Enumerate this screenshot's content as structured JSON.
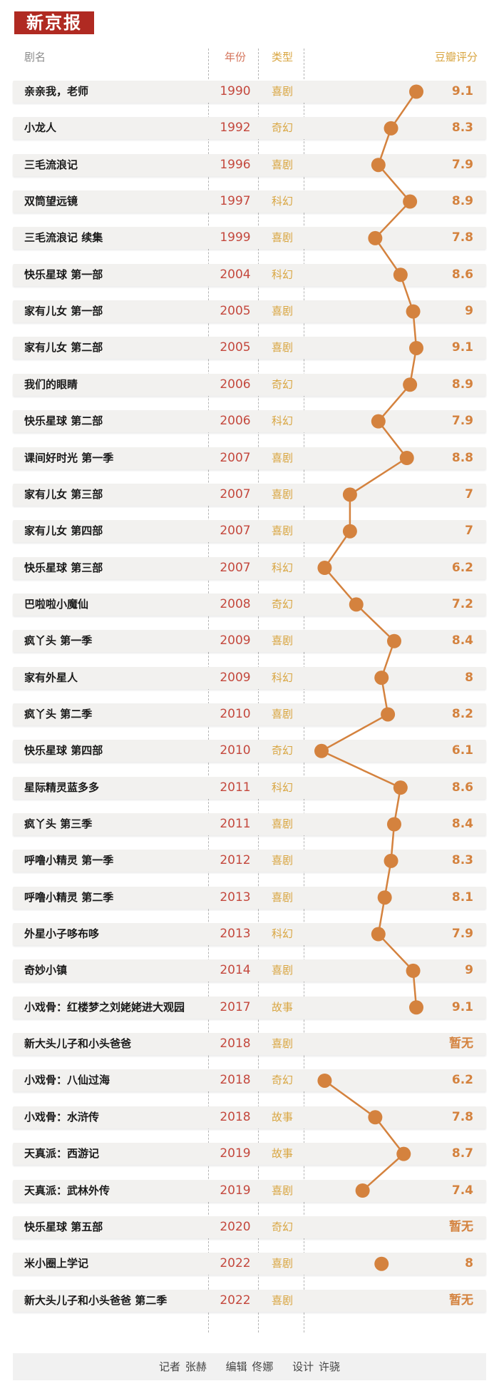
{
  "logo": "新京报",
  "headers": {
    "name": "剧名",
    "year": "年份",
    "type": "类型",
    "score": "豆瓣评分"
  },
  "colors": {
    "marker": "#d4823e",
    "year_text": "#c4483d",
    "type_text": "#d9a642",
    "logo_bg": "#b02a22"
  },
  "chart_data": {
    "type": "line",
    "orientation": "vertical",
    "xlabel": "豆瓣评分",
    "categories": [
      "亲亲我，老师",
      "小龙人",
      "三毛流浪记",
      "双筒望远镜",
      "三毛流浪记 续集",
      "快乐星球 第一部",
      "家有儿女 第一部",
      "家有儿女 第二部",
      "我们的眼睛",
      "快乐星球 第二部",
      "课间好时光 第一季",
      "家有儿女 第三部",
      "家有儿女 第四部",
      "快乐星球 第三部",
      "巴啦啦小魔仙",
      "疯丫头 第一季",
      "家有外星人",
      "疯丫头 第二季",
      "快乐星球 第四部",
      "星际精灵蓝多多",
      "疯丫头 第三季",
      "呼噜小精灵 第一季",
      "呼噜小精灵 第二季",
      "外星小子哆布哆",
      "奇妙小镇",
      "小戏骨：红楼梦之刘姥姥进大观园",
      "新大头儿子和小头爸爸",
      "小戏骨：八仙过海",
      "小戏骨：水浒传",
      "天真派：西游记",
      "天真派：武林外传",
      "快乐星球 第五部",
      "米小圈上学记",
      "新大头儿子和小头爸爸 第二季"
    ],
    "years": [
      "1990",
      "1992",
      "1996",
      "1997",
      "1999",
      "2004",
      "2005",
      "2005",
      "2006",
      "2006",
      "2007",
      "2007",
      "2007",
      "2007",
      "2008",
      "2009",
      "2009",
      "2010",
      "2010",
      "2011",
      "2011",
      "2012",
      "2013",
      "2013",
      "2014",
      "2017",
      "2018",
      "2018",
      "2018",
      "2019",
      "2019",
      "2020",
      "2022",
      "2022"
    ],
    "genres": [
      "喜剧",
      "奇幻",
      "喜剧",
      "科幻",
      "喜剧",
      "科幻",
      "喜剧",
      "喜剧",
      "奇幻",
      "科幻",
      "喜剧",
      "喜剧",
      "喜剧",
      "科幻",
      "奇幻",
      "喜剧",
      "科幻",
      "喜剧",
      "奇幻",
      "科幻",
      "喜剧",
      "喜剧",
      "喜剧",
      "科幻",
      "喜剧",
      "故事",
      "喜剧",
      "奇幻",
      "故事",
      "故事",
      "喜剧",
      "奇幻",
      "喜剧",
      "喜剧"
    ],
    "values": [
      9.1,
      8.3,
      7.9,
      8.9,
      7.8,
      8.6,
      9,
      9.1,
      8.9,
      7.9,
      8.8,
      7,
      7,
      6.2,
      7.2,
      8.4,
      8,
      8.2,
      6.1,
      8.6,
      8.4,
      8.3,
      8.1,
      7.9,
      9,
      9.1,
      null,
      6.2,
      7.8,
      8.7,
      7.4,
      null,
      8,
      null
    ],
    "score_labels": [
      "9.1",
      "8.3",
      "7.9",
      "8.9",
      "7.8",
      "8.6",
      "9",
      "9.1",
      "8.9",
      "7.9",
      "8.8",
      "7",
      "7",
      "6.2",
      "7.2",
      "8.4",
      "8",
      "8.2",
      "6.1",
      "8.6",
      "8.4",
      "8.3",
      "8.1",
      "7.9",
      "9",
      "9.1",
      "暂无",
      "6.2",
      "7.8",
      "8.7",
      "7.4",
      "暂无",
      "8",
      "暂无"
    ],
    "xlim": [
      6.1,
      9.1
    ],
    "grid": false,
    "legend": "none"
  },
  "footer": {
    "reporter": "记者 张赫",
    "editor": "编辑 佟娜",
    "design": "设计 许骁"
  }
}
